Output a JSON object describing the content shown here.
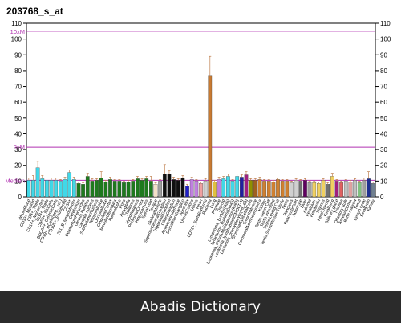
{
  "chart_data": {
    "type": "bar",
    "title": "203768_s_at",
    "ylim": [
      0,
      110
    ],
    "yticks": [
      0,
      10,
      20,
      30,
      40,
      50,
      60,
      70,
      80,
      90,
      100,
      110
    ],
    "grid": false,
    "reference_lines": [
      {
        "label": "10xM",
        "value": 105,
        "color": "#b030b0"
      },
      {
        "label": "3xM",
        "value": 31.5,
        "color": "#b030b0"
      },
      {
        "label": "Median",
        "value": 10.5,
        "color": "#b030b0"
      }
    ],
    "categories": [
      "WholeBlood",
      "CD33+_Myeloid",
      "CD4+_Tcells",
      "CD14+_Monocytes",
      "CD8+_Tcells",
      "CD56+_NKCells",
      "BDCA4+_DentriticCells",
      "CD19+_BCells(neg._sel.)",
      "CD105+_Endothelial",
      "CD34+",
      "721_B_lymphoblasts",
      "Cerebellum",
      "CerebellumPeduncles",
      "Globus Pallidus",
      "Caudate nucleus",
      "SubthalamicNucleus",
      "TemporalLobe",
      "OccipitalLobe",
      "CingulateCortex",
      "MedullaOblongata",
      "ParietalLobe",
      "Pons",
      "Amygdala",
      "Thalamus",
      "Hypothalamus",
      "PrefrontalCortex",
      "Hippocampus",
      "Spinal cord",
      "Tongue",
      "SkeletalMuscle",
      "SuperiorCervicalGanglion",
      "TrigeminalGanglion",
      "CiliaryGanglion",
      "AtrioventricularNode",
      "DorsalRootGanglion",
      "Appendix",
      "UterusCorpus",
      "Uterus",
      "Heart",
      "CD71+_EarlyErythroid",
      "Placenta",
      "Lung",
      "Prostate",
      "Thyroid",
      "Lymphoma_burkitts(Raji)",
      "Lymphoma_burkitts(Daudi)",
      "Leukemia_chronicMyelogenous(k562)",
      "Leukemia_lymphoblastic(MOLT-4)",
      "Leukemia_promyelocytic(HL-60)",
      "BronchialEpithelialCells",
      "SmoothMuscle",
      "ColorectalAdenocarcinoma",
      "Kidney",
      "Testis Germ Cell",
      "Testis Interstitial",
      "Testis Leydig Cell",
      "Testis Seminiferous Tubule",
      "Testis",
      "Pancreas",
      "PancreaticIslet",
      "Adipocyte",
      "Liver",
      "Adrenal",
      "FetalLiver",
      "FetalBrain",
      "Thymus",
      "FetalThyroid",
      "FetalLung",
      "Salivary gland",
      "Trachea",
      "Olfactory Bulb",
      "AdrenalCortex",
      "Bone marrow",
      "Tonsil",
      "Lymph node",
      "Fetalbrain",
      "Kidney "
    ],
    "series": [
      {
        "values": [
          10.5,
          10.5,
          18.5,
          11.5,
          10.5,
          10.5,
          10.5,
          10,
          11,
          15.5,
          11,
          8.5,
          8,
          13,
          10,
          10.5,
          12,
          9.5,
          11,
          10,
          10,
          9,
          9.5,
          10,
          11.5,
          10.5,
          11.5,
          10,
          8,
          10,
          14.5,
          14.5,
          11,
          10.5,
          12,
          7,
          11,
          10,
          8.5,
          10,
          77,
          9.5,
          11,
          11.5,
          13,
          10,
          13,
          12.5,
          14,
          10.5,
          10.5,
          11,
          10,
          10,
          9.5,
          11,
          10,
          10,
          9,
          10.5,
          10,
          10.5,
          9,
          9,
          8.5,
          10.5,
          8,
          13,
          10,
          9,
          10,
          9.5,
          10.5,
          9,
          10.5,
          11.5,
          8.5
        ],
        "errors": [
          1.5,
          3,
          4,
          2,
          1.5,
          1.5,
          1.5,
          1,
          1.5,
          1.5,
          1.5,
          1,
          1,
          2,
          1.5,
          1,
          4,
          1,
          1.5,
          1,
          1,
          1,
          1,
          1,
          1.5,
          1,
          1.5,
          3,
          1,
          1,
          6,
          2,
          1.5,
          1,
          1.5,
          1,
          1.5,
          1,
          1,
          1.5,
          12,
          1,
          1.5,
          1.5,
          1.5,
          1,
          1.5,
          1.5,
          2,
          1,
          1,
          1.5,
          1,
          1,
          1,
          1,
          1,
          1,
          1,
          1,
          1,
          1,
          1,
          1,
          1,
          1,
          1,
          2,
          1,
          1,
          1,
          1,
          1,
          1,
          1.5,
          4.5,
          1
        ],
        "colors": [
          "#40d8e8",
          "#40d8e8",
          "#40d8e8",
          "#40d8e8",
          "#40d8e8",
          "#40d8e8",
          "#40d8e8",
          "#40d8e8",
          "#40d8e8",
          "#40d8e8",
          "#40d8e8",
          "#1e7a1e",
          "#1e7a1e",
          "#1e7a1e",
          "#1e7a1e",
          "#1e7a1e",
          "#1e7a1e",
          "#1e7a1e",
          "#1e7a1e",
          "#1e7a1e",
          "#1e7a1e",
          "#1e7a1e",
          "#1e7a1e",
          "#1e7a1e",
          "#1e7a1e",
          "#1e7a1e",
          "#1e7a1e",
          "#1e7a1e",
          "#f4e0c8",
          "#a0a0a0",
          "#101010",
          "#101010",
          "#101010",
          "#101010",
          "#101010",
          "#2020c8",
          "#c080e0",
          "#c080e0",
          "#f0a0a0",
          "#d0d0d0",
          "#c87a32",
          "#e0c040",
          "#c080e0",
          "#40d8e8",
          "#40d8e8",
          "#40d8e8",
          "#40d8e8",
          "#2020a0",
          "#a02080",
          "#909000",
          "#a06020",
          "#d08030",
          "#d08030",
          "#d08030",
          "#d08030",
          "#d08030",
          "#d08030",
          "#d08030",
          "#d0d0d0",
          "#d0d0d0",
          "#707070",
          "#600060",
          "#a0a0a0",
          "#f0d060",
          "#f0d060",
          "#f0d060",
          "#707070",
          "#f0d060",
          "#a02080",
          "#e06060",
          "#c0c0c0",
          "#e0a0a0",
          "#c0c0c0",
          "#80c080",
          "#a0a0a0",
          "#1e3090",
          "#708090"
        ]
      }
    ]
  },
  "footer": {
    "text": "Abadis Dictionary"
  }
}
